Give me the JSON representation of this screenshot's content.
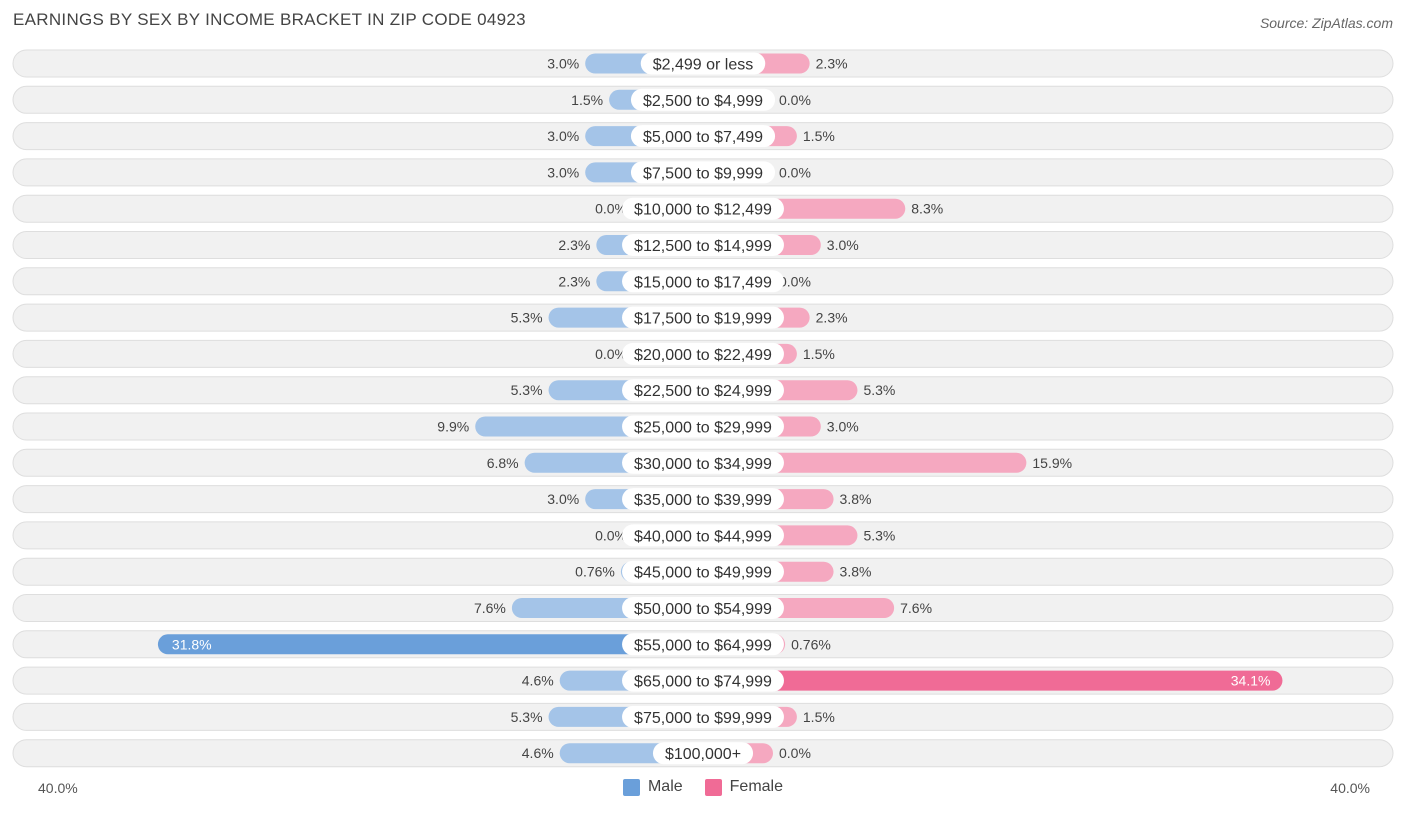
{
  "title": "EARNINGS BY SEX BY INCOME BRACKET IN ZIP CODE 04923",
  "source": "Source: ZipAtlas.com",
  "colors": {
    "male": "#a4c4e8",
    "male_strong": "#6a9fda",
    "female": "#f5a8c0",
    "female_strong": "#f06b96",
    "row_bg": "#f1f1f1",
    "row_border": "#dedede"
  },
  "legend": {
    "male_label": "Male",
    "female_label": "Female"
  },
  "axis": {
    "left_label": "40.0%",
    "right_label": "40.0%"
  },
  "chart_data": {
    "type": "bar",
    "orientation": "horizontal-diverging",
    "title": "EARNINGS BY SEX BY INCOME BRACKET IN ZIP CODE 04923",
    "xlim": [
      -40,
      40
    ],
    "categories": [
      "$2,499 or less",
      "$2,500 to $4,999",
      "$5,000 to $7,499",
      "$7,500 to $9,999",
      "$10,000 to $12,499",
      "$12,500 to $14,999",
      "$15,000 to $17,499",
      "$17,500 to $19,999",
      "$20,000 to $22,499",
      "$22,500 to $24,999",
      "$25,000 to $29,999",
      "$30,000 to $34,999",
      "$35,000 to $39,999",
      "$40,000 to $44,999",
      "$45,000 to $49,999",
      "$50,000 to $54,999",
      "$55,000 to $64,999",
      "$65,000 to $74,999",
      "$75,000 to $99,999",
      "$100,000+"
    ],
    "series": [
      {
        "name": "Male",
        "values": [
          3.0,
          1.5,
          3.0,
          3.0,
          0.0,
          2.3,
          2.3,
          5.3,
          0.0,
          5.3,
          9.9,
          6.8,
          3.0,
          0.0,
          0.76,
          7.6,
          31.8,
          4.6,
          5.3,
          4.6
        ],
        "labels": [
          "3.0%",
          "1.5%",
          "3.0%",
          "3.0%",
          "0.0%",
          "2.3%",
          "2.3%",
          "5.3%",
          "0.0%",
          "5.3%",
          "9.9%",
          "6.8%",
          "3.0%",
          "0.0%",
          "0.76%",
          "7.6%",
          "31.8%",
          "4.6%",
          "5.3%",
          "4.6%"
        ]
      },
      {
        "name": "Female",
        "values": [
          2.3,
          0.0,
          1.5,
          0.0,
          8.3,
          3.0,
          0.0,
          2.3,
          1.5,
          5.3,
          3.0,
          15.9,
          3.8,
          5.3,
          3.8,
          7.6,
          0.76,
          34.1,
          1.5,
          0.0
        ],
        "labels": [
          "2.3%",
          "0.0%",
          "1.5%",
          "0.0%",
          "8.3%",
          "3.0%",
          "0.0%",
          "2.3%",
          "1.5%",
          "5.3%",
          "3.0%",
          "15.9%",
          "3.8%",
          "5.3%",
          "3.8%",
          "7.6%",
          "0.76%",
          "34.1%",
          "1.5%",
          "0.0%"
        ]
      }
    ]
  }
}
